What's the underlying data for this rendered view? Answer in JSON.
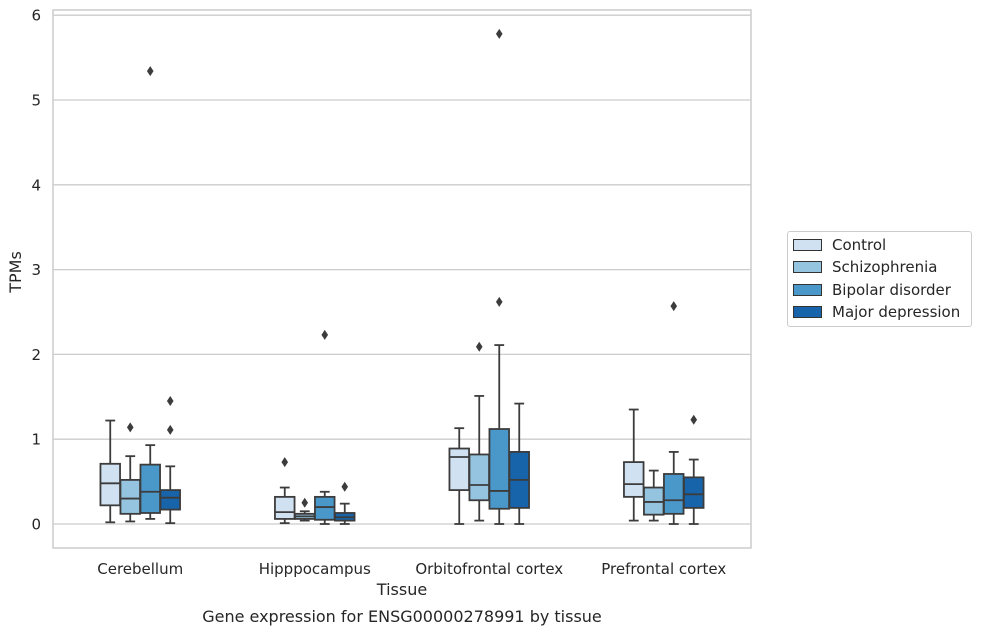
{
  "chart_data": {
    "type": "box",
    "title": "Gene expression for ENSG00000278991 by tissue",
    "xlabel": "Tissue",
    "ylabel": "TPMs",
    "ylim": [
      -0.28,
      6.1
    ],
    "yticks": [
      "0",
      "1",
      "2",
      "3",
      "4",
      "5",
      "6"
    ],
    "grid": "horizontal",
    "legend_position": "right",
    "categories": [
      "Cerebellum",
      "Hipppocampus",
      "Orbitofrontal cortex",
      "Prefrontal cortex"
    ],
    "series": [
      {
        "name": "Control",
        "color": "#d0e1f2",
        "boxes": [
          {
            "min": 0.02,
            "q1": 0.22,
            "median": 0.48,
            "q3": 0.71,
            "max": 1.22,
            "outliers": []
          },
          {
            "min": 0.01,
            "q1": 0.06,
            "median": 0.14,
            "q3": 0.32,
            "max": 0.43,
            "outliers": [
              0.73
            ]
          },
          {
            "min": 0.0,
            "q1": 0.4,
            "median": 0.79,
            "q3": 0.89,
            "max": 1.13,
            "outliers": []
          },
          {
            "min": 0.04,
            "q1": 0.32,
            "median": 0.47,
            "q3": 0.73,
            "max": 1.35,
            "outliers": []
          }
        ]
      },
      {
        "name": "Schizophrenia",
        "color": "#94c4df",
        "boxes": [
          {
            "min": 0.03,
            "q1": 0.12,
            "median": 0.3,
            "q3": 0.52,
            "max": 0.8,
            "outliers": [
              1.14
            ]
          },
          {
            "min": 0.04,
            "q1": 0.06,
            "median": 0.09,
            "q3": 0.12,
            "max": 0.15,
            "outliers": [
              0.25
            ]
          },
          {
            "min": 0.04,
            "q1": 0.28,
            "median": 0.46,
            "q3": 0.82,
            "max": 1.51,
            "outliers": [
              2.09
            ]
          },
          {
            "min": 0.04,
            "q1": 0.11,
            "median": 0.26,
            "q3": 0.43,
            "max": 0.63,
            "outliers": []
          }
        ]
      },
      {
        "name": "Bipolar disorder",
        "color": "#4a98c9",
        "boxes": [
          {
            "min": 0.06,
            "q1": 0.13,
            "median": 0.38,
            "q3": 0.7,
            "max": 0.93,
            "outliers": [
              5.34
            ]
          },
          {
            "min": 0.0,
            "q1": 0.05,
            "median": 0.2,
            "q3": 0.32,
            "max": 0.38,
            "outliers": [
              2.23
            ]
          },
          {
            "min": 0.0,
            "q1": 0.18,
            "median": 0.39,
            "q3": 1.12,
            "max": 2.11,
            "outliers": [
              2.62,
              5.78
            ]
          },
          {
            "min": 0.0,
            "q1": 0.12,
            "median": 0.28,
            "q3": 0.59,
            "max": 0.85,
            "outliers": [
              2.57
            ]
          }
        ]
      },
      {
        "name": "Major depression",
        "color": "#1764ab",
        "boxes": [
          {
            "min": 0.01,
            "q1": 0.17,
            "median": 0.31,
            "q3": 0.4,
            "max": 0.68,
            "outliers": [
              1.11,
              1.45
            ]
          },
          {
            "min": 0.0,
            "q1": 0.04,
            "median": 0.08,
            "q3": 0.13,
            "max": 0.24,
            "outliers": [
              0.44
            ]
          },
          {
            "min": 0.0,
            "q1": 0.19,
            "median": 0.52,
            "q3": 0.85,
            "max": 1.42,
            "outliers": []
          },
          {
            "min": 0.0,
            "q1": 0.19,
            "median": 0.35,
            "q3": 0.55,
            "max": 0.76,
            "outliers": [
              1.23
            ]
          }
        ]
      }
    ]
  }
}
